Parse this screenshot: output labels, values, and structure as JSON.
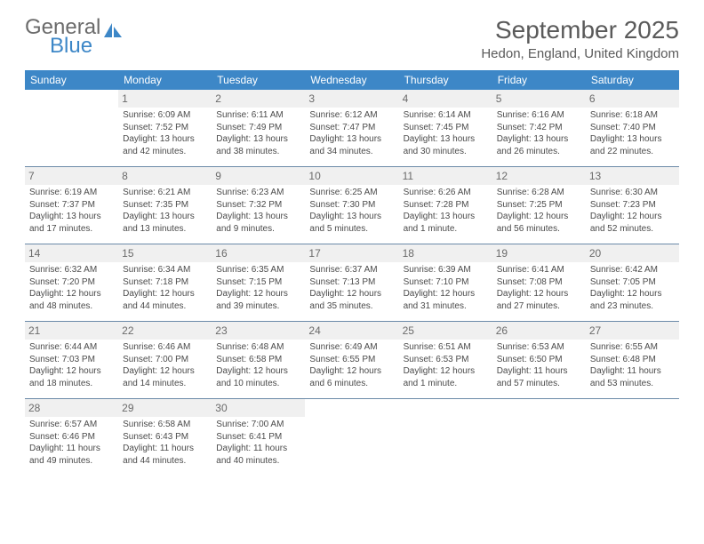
{
  "logo": {
    "general": "General",
    "blue": "Blue"
  },
  "header": {
    "month_title": "September 2025",
    "location": "Hedon, England, United Kingdom"
  },
  "theme": {
    "header_bg": "#3d87c7",
    "header_fg": "#ffffff",
    "daynum_bg": "#f0f0f0",
    "row_border": "#6b8aa8",
    "text_color": "#4a4a4a",
    "logo_accent": "#3d87c7"
  },
  "days_of_week": [
    "Sunday",
    "Monday",
    "Tuesday",
    "Wednesday",
    "Thursday",
    "Friday",
    "Saturday"
  ],
  "weeks": [
    [
      null,
      {
        "n": "1",
        "sr": "6:09 AM",
        "ss": "7:52 PM",
        "dl": "13 hours and 42 minutes."
      },
      {
        "n": "2",
        "sr": "6:11 AM",
        "ss": "7:49 PM",
        "dl": "13 hours and 38 minutes."
      },
      {
        "n": "3",
        "sr": "6:12 AM",
        "ss": "7:47 PM",
        "dl": "13 hours and 34 minutes."
      },
      {
        "n": "4",
        "sr": "6:14 AM",
        "ss": "7:45 PM",
        "dl": "13 hours and 30 minutes."
      },
      {
        "n": "5",
        "sr": "6:16 AM",
        "ss": "7:42 PM",
        "dl": "13 hours and 26 minutes."
      },
      {
        "n": "6",
        "sr": "6:18 AM",
        "ss": "7:40 PM",
        "dl": "13 hours and 22 minutes."
      }
    ],
    [
      {
        "n": "7",
        "sr": "6:19 AM",
        "ss": "7:37 PM",
        "dl": "13 hours and 17 minutes."
      },
      {
        "n": "8",
        "sr": "6:21 AM",
        "ss": "7:35 PM",
        "dl": "13 hours and 13 minutes."
      },
      {
        "n": "9",
        "sr": "6:23 AM",
        "ss": "7:32 PM",
        "dl": "13 hours and 9 minutes."
      },
      {
        "n": "10",
        "sr": "6:25 AM",
        "ss": "7:30 PM",
        "dl": "13 hours and 5 minutes."
      },
      {
        "n": "11",
        "sr": "6:26 AM",
        "ss": "7:28 PM",
        "dl": "13 hours and 1 minute."
      },
      {
        "n": "12",
        "sr": "6:28 AM",
        "ss": "7:25 PM",
        "dl": "12 hours and 56 minutes."
      },
      {
        "n": "13",
        "sr": "6:30 AM",
        "ss": "7:23 PM",
        "dl": "12 hours and 52 minutes."
      }
    ],
    [
      {
        "n": "14",
        "sr": "6:32 AM",
        "ss": "7:20 PM",
        "dl": "12 hours and 48 minutes."
      },
      {
        "n": "15",
        "sr": "6:34 AM",
        "ss": "7:18 PM",
        "dl": "12 hours and 44 minutes."
      },
      {
        "n": "16",
        "sr": "6:35 AM",
        "ss": "7:15 PM",
        "dl": "12 hours and 39 minutes."
      },
      {
        "n": "17",
        "sr": "6:37 AM",
        "ss": "7:13 PM",
        "dl": "12 hours and 35 minutes."
      },
      {
        "n": "18",
        "sr": "6:39 AM",
        "ss": "7:10 PM",
        "dl": "12 hours and 31 minutes."
      },
      {
        "n": "19",
        "sr": "6:41 AM",
        "ss": "7:08 PM",
        "dl": "12 hours and 27 minutes."
      },
      {
        "n": "20",
        "sr": "6:42 AM",
        "ss": "7:05 PM",
        "dl": "12 hours and 23 minutes."
      }
    ],
    [
      {
        "n": "21",
        "sr": "6:44 AM",
        "ss": "7:03 PM",
        "dl": "12 hours and 18 minutes."
      },
      {
        "n": "22",
        "sr": "6:46 AM",
        "ss": "7:00 PM",
        "dl": "12 hours and 14 minutes."
      },
      {
        "n": "23",
        "sr": "6:48 AM",
        "ss": "6:58 PM",
        "dl": "12 hours and 10 minutes."
      },
      {
        "n": "24",
        "sr": "6:49 AM",
        "ss": "6:55 PM",
        "dl": "12 hours and 6 minutes."
      },
      {
        "n": "25",
        "sr": "6:51 AM",
        "ss": "6:53 PM",
        "dl": "12 hours and 1 minute."
      },
      {
        "n": "26",
        "sr": "6:53 AM",
        "ss": "6:50 PM",
        "dl": "11 hours and 57 minutes."
      },
      {
        "n": "27",
        "sr": "6:55 AM",
        "ss": "6:48 PM",
        "dl": "11 hours and 53 minutes."
      }
    ],
    [
      {
        "n": "28",
        "sr": "6:57 AM",
        "ss": "6:46 PM",
        "dl": "11 hours and 49 minutes."
      },
      {
        "n": "29",
        "sr": "6:58 AM",
        "ss": "6:43 PM",
        "dl": "11 hours and 44 minutes."
      },
      {
        "n": "30",
        "sr": "7:00 AM",
        "ss": "6:41 PM",
        "dl": "11 hours and 40 minutes."
      },
      null,
      null,
      null,
      null
    ]
  ],
  "labels": {
    "sunrise": "Sunrise: ",
    "sunset": "Sunset: ",
    "daylight": "Daylight: "
  }
}
